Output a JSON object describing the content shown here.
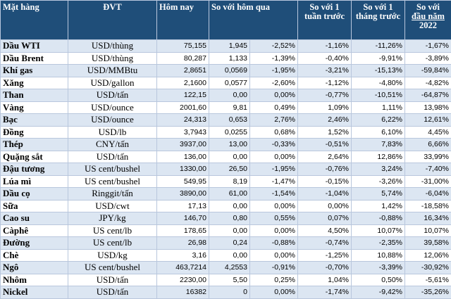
{
  "table": {
    "headers": {
      "item": "Mặt hàng",
      "unit": "ĐVT",
      "today": "Hôm nay",
      "vs_yesterday": "So với hôm qua",
      "vs_week": "So với 1 tuần trước",
      "vs_month": "So với 1 tháng trước",
      "vs_ytd_line1": "So với",
      "vs_ytd_line2": "đầu năm",
      "vs_ytd_line3": "2022"
    },
    "rows": [
      {
        "name": "Dầu WTI",
        "unit": "USD/thùng",
        "price": "75,155",
        "chg": "1,945",
        "pct_day": "-2,52%",
        "pct_week": "-1,16%",
        "pct_month": "-11,26%",
        "pct_ytd": "-1,67%"
      },
      {
        "name": "Dầu Brent",
        "unit": "USD/thùng",
        "price": "80,287",
        "chg": "1,133",
        "pct_day": "-1,39%",
        "pct_week": "-0,40%",
        "pct_month": "-9,91%",
        "pct_ytd": "-3,89%"
      },
      {
        "name": "Khí gas",
        "unit": "USD/MMBtu",
        "price": "2,8651",
        "chg": "0,0569",
        "pct_day": "-1,95%",
        "pct_week": "-3,21%",
        "pct_month": "-15,13%",
        "pct_ytd": "-59,84%"
      },
      {
        "name": "Xăng",
        "unit": "USD/gallon",
        "price": "2,1600",
        "chg": "0,0577",
        "pct_day": "-2,60%",
        "pct_week": "-1,12%",
        "pct_month": "-4,80%",
        "pct_ytd": "-4,82%"
      },
      {
        "name": "Than",
        "unit": "USD/tấn",
        "price": "122,15",
        "chg": "0,00",
        "pct_day": "0,00%",
        "pct_week": "-0,77%",
        "pct_month": "-10,51%",
        "pct_ytd": "-64,87%"
      },
      {
        "name": "Vàng",
        "unit": "USD/ounce",
        "price": "2001,60",
        "chg": "9,81",
        "pct_day": "0,49%",
        "pct_week": "1,09%",
        "pct_month": "1,11%",
        "pct_ytd": "13,98%"
      },
      {
        "name": "Bạc",
        "unit": "USD/ounce",
        "price": "24,313",
        "chg": "0,653",
        "pct_day": "2,76%",
        "pct_week": "2,46%",
        "pct_month": "6,22%",
        "pct_ytd": "12,61%"
      },
      {
        "name": "Đồng",
        "unit": "USD/lb",
        "price": "3,7943",
        "chg": "0,0255",
        "pct_day": "0,68%",
        "pct_week": "1,52%",
        "pct_month": "6,10%",
        "pct_ytd": "4,45%"
      },
      {
        "name": "Thép",
        "unit": "CNY/tấn",
        "price": "3937,00",
        "chg": "13,00",
        "pct_day": "-0,33%",
        "pct_week": "-0,51%",
        "pct_month": "7,83%",
        "pct_ytd": "6,66%"
      },
      {
        "name": "Quặng sắt",
        "unit": "USD/tấn",
        "price": "136,00",
        "chg": "0,00",
        "pct_day": "0,00%",
        "pct_week": "2,64%",
        "pct_month": "12,86%",
        "pct_ytd": "33,99%"
      },
      {
        "name": "Đậu tương",
        "unit": "US cent/bushel",
        "price": "1330,00",
        "chg": "26,50",
        "pct_day": "-1,95%",
        "pct_week": "-0,76%",
        "pct_month": "3,24%",
        "pct_ytd": "-7,40%"
      },
      {
        "name": "Lúa mì",
        "unit": "US cent/bushel",
        "price": "549,95",
        "chg": "8,19",
        "pct_day": "-1,47%",
        "pct_week": "-0,15%",
        "pct_month": "-3,26%",
        "pct_ytd": "-31,00%"
      },
      {
        "name": "Dầu cọ",
        "unit": "Ringgit/tấn",
        "price": "3890,00",
        "chg": "61,00",
        "pct_day": "-1,54%",
        "pct_week": "-1,04%",
        "pct_month": "5,74%",
        "pct_ytd": "-6,04%"
      },
      {
        "name": "Sữa",
        "unit": "USD/cwt",
        "price": "17,13",
        "chg": "0,00",
        "pct_day": "0,00%",
        "pct_week": "0,00%",
        "pct_month": "1,42%",
        "pct_ytd": "-18,58%"
      },
      {
        "name": "Cao su",
        "unit": "JPY/kg",
        "price": "146,70",
        "chg": "0,80",
        "pct_day": "0,55%",
        "pct_week": "0,07%",
        "pct_month": "-0,88%",
        "pct_ytd": "16,34%"
      },
      {
        "name": "Càphê",
        "unit": "US cent/lb",
        "price": "178,65",
        "chg": "0,00",
        "pct_day": "0,00%",
        "pct_week": "4,50%",
        "pct_month": "10,07%",
        "pct_ytd": "10,07%"
      },
      {
        "name": "Đường",
        "unit": "US cent/lb",
        "price": "26,98",
        "chg": "0,24",
        "pct_day": "-0,88%",
        "pct_week": "-0,74%",
        "pct_month": "-2,35%",
        "pct_ytd": "39,58%"
      },
      {
        "name": "Chè",
        "unit": "USD/kg",
        "price": "3,16",
        "chg": "0,00",
        "pct_day": "0,00%",
        "pct_week": "-1,25%",
        "pct_month": "10,88%",
        "pct_ytd": "12,06%"
      },
      {
        "name": "Ngô",
        "unit": "US cent/bushel",
        "price": "463,7214",
        "chg": "4,2553",
        "pct_day": "-0,91%",
        "pct_week": "-0,70%",
        "pct_month": "-3,39%",
        "pct_ytd": "-30,92%"
      },
      {
        "name": "Nhôm",
        "unit": "USD/tấn",
        "price": "2230,00",
        "chg": "5,50",
        "pct_day": "0,25%",
        "pct_week": "1,04%",
        "pct_month": "0,50%",
        "pct_ytd": "-5,61%"
      },
      {
        "name": "Nickel",
        "unit": "USD/tấn",
        "price": "16382",
        "chg": "0",
        "pct_day": "0,00%",
        "pct_week": "-1,74%",
        "pct_month": "-9,42%",
        "pct_ytd": "-35,26%"
      }
    ]
  }
}
